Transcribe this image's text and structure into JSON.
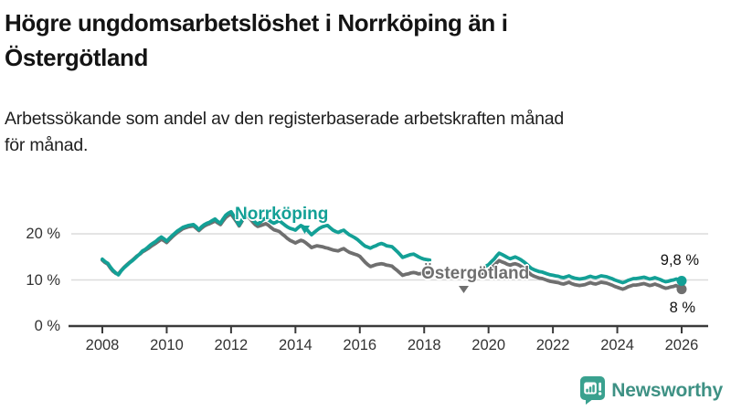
{
  "header": {
    "title_lines": [
      "Högre ungdomsarbetslöshet i Norrköping än i",
      "Östergötland"
    ],
    "subtitle_lines": [
      "Arbetssökande som andel av den registerbaserade arbetskraften månad",
      "för månad."
    ]
  },
  "chart_data": {
    "type": "line",
    "title": "Högre ungdomsarbetslöshet i Norrköping än i Östergötland",
    "subtitle": "Arbetssökande som andel av den registerbaserade arbetskraften månad för månad.",
    "xlabel": "",
    "ylabel": "",
    "grid": "horizontal",
    "legend_position": "inline-labels",
    "xlim": [
      2007.0,
      2026.8
    ],
    "ylim": [
      0,
      27
    ],
    "x_ticks": [
      2008,
      2010,
      2012,
      2014,
      2016,
      2018,
      2020,
      2022,
      2024,
      2026
    ],
    "y_ticks": [
      {
        "value": 0,
        "label": "0 %"
      },
      {
        "value": 10,
        "label": "10 %"
      },
      {
        "value": 20,
        "label": "20 %"
      }
    ],
    "series": [
      {
        "name": "Norrköping",
        "color": "#13a096",
        "end_label": "9,8 %",
        "end_value": 9.8
      },
      {
        "name": "Östergötland",
        "color": "#6f6f6f",
        "end_label": "8 %",
        "end_value": 8.0
      }
    ],
    "data_gap": {
      "from": 2018.17,
      "to": 2019.75
    },
    "segments": [
      {
        "points": [
          [
            2008.0,
            14.5,
            14.3
          ],
          [
            2008.08,
            14.0,
            13.8
          ],
          [
            2008.17,
            13.6,
            13.4
          ],
          [
            2008.25,
            12.8,
            12.6
          ],
          [
            2008.33,
            12.1,
            11.9
          ],
          [
            2008.42,
            11.5,
            11.4
          ],
          [
            2008.5,
            11.1,
            11.3
          ],
          [
            2008.58,
            11.9,
            12.0
          ],
          [
            2008.67,
            12.6,
            12.7
          ],
          [
            2008.75,
            13.1,
            13.2
          ],
          [
            2008.83,
            13.6,
            13.7
          ],
          [
            2008.92,
            14.1,
            14.2
          ],
          [
            2009.0,
            14.6,
            14.7
          ],
          [
            2009.08,
            15.1,
            15.2
          ],
          [
            2009.17,
            15.7,
            15.6
          ],
          [
            2009.25,
            16.3,
            16.1
          ],
          [
            2009.33,
            16.6,
            16.4
          ],
          [
            2009.42,
            17.1,
            16.8
          ],
          [
            2009.5,
            17.6,
            17.2
          ],
          [
            2009.58,
            18.0,
            17.6
          ],
          [
            2009.67,
            18.4,
            18.0
          ],
          [
            2009.75,
            18.9,
            18.4
          ],
          [
            2009.83,
            19.3,
            18.8
          ],
          [
            2009.92,
            18.9,
            18.5
          ],
          [
            2010.0,
            18.4,
            18.1
          ],
          [
            2010.08,
            19.0,
            18.7
          ],
          [
            2010.17,
            19.6,
            19.3
          ],
          [
            2010.25,
            20.1,
            19.8
          ],
          [
            2010.33,
            20.6,
            20.3
          ],
          [
            2010.42,
            21.0,
            20.7
          ],
          [
            2010.5,
            21.4,
            21.1
          ],
          [
            2010.58,
            21.6,
            21.3
          ],
          [
            2010.67,
            21.8,
            21.5
          ],
          [
            2010.75,
            21.9,
            21.6
          ],
          [
            2010.83,
            22.0,
            21.7
          ],
          [
            2010.92,
            21.5,
            21.2
          ],
          [
            2011.0,
            20.9,
            20.7
          ],
          [
            2011.08,
            21.5,
            21.2
          ],
          [
            2011.17,
            22.0,
            21.7
          ],
          [
            2011.25,
            22.3,
            22.0
          ],
          [
            2011.33,
            22.5,
            22.2
          ],
          [
            2011.42,
            22.9,
            22.5
          ],
          [
            2011.5,
            23.2,
            22.8
          ],
          [
            2011.58,
            22.7,
            22.4
          ],
          [
            2011.67,
            22.3,
            22.0
          ],
          [
            2011.75,
            23.2,
            22.8
          ],
          [
            2011.83,
            24.0,
            23.5
          ],
          [
            2011.92,
            24.5,
            24.0
          ],
          [
            2012.0,
            24.8,
            24.3
          ],
          [
            2012.08,
            23.9,
            23.5
          ],
          [
            2012.17,
            22.9,
            22.6
          ],
          [
            2012.25,
            21.9,
            21.7
          ],
          [
            2012.33,
            22.9,
            22.6
          ],
          [
            2012.42,
            24.0,
            23.8
          ],
          [
            2012.5,
            24.4,
            24.1
          ],
          [
            2012.58,
            23.7,
            23.3
          ],
          [
            2012.67,
            23.1,
            22.6
          ],
          [
            2012.75,
            22.5,
            22.0
          ],
          [
            2012.83,
            22.1,
            21.6
          ],
          [
            2012.92,
            22.6,
            21.8
          ],
          [
            2013.0,
            23.1,
            22.0
          ],
          [
            2013.08,
            23.4,
            22.2
          ],
          [
            2013.17,
            23.0,
            21.8
          ],
          [
            2013.25,
            22.6,
            21.3
          ],
          [
            2013.33,
            22.3,
            20.9
          ],
          [
            2013.42,
            22.6,
            20.7
          ],
          [
            2013.5,
            22.9,
            20.5
          ],
          [
            2013.58,
            22.4,
            20.0
          ],
          [
            2013.67,
            21.9,
            19.5
          ],
          [
            2013.75,
            21.5,
            19.0
          ],
          [
            2013.83,
            21.2,
            18.6
          ],
          [
            2013.92,
            21.0,
            18.3
          ],
          [
            2014.0,
            20.8,
            18.0
          ],
          [
            2014.08,
            21.3,
            18.3
          ],
          [
            2014.17,
            21.8,
            18.6
          ],
          [
            2014.25,
            21.5,
            18.4
          ],
          [
            2014.33,
            21.1,
            18.0
          ],
          [
            2014.42,
            20.4,
            17.5
          ],
          [
            2014.5,
            19.8,
            17.0
          ],
          [
            2014.58,
            20.3,
            17.2
          ],
          [
            2014.67,
            20.8,
            17.4
          ],
          [
            2014.75,
            21.2,
            17.3
          ],
          [
            2014.83,
            21.5,
            17.2
          ],
          [
            2014.92,
            21.7,
            17.0
          ],
          [
            2015.0,
            21.8,
            16.9
          ],
          [
            2015.08,
            21.3,
            16.7
          ],
          [
            2015.17,
            20.8,
            16.5
          ],
          [
            2015.25,
            20.5,
            16.4
          ],
          [
            2015.33,
            20.3,
            16.3
          ],
          [
            2015.42,
            20.6,
            16.6
          ],
          [
            2015.5,
            20.8,
            16.8
          ],
          [
            2015.58,
            20.3,
            16.4
          ],
          [
            2015.67,
            19.8,
            16.0
          ],
          [
            2015.75,
            19.5,
            15.8
          ],
          [
            2015.83,
            19.2,
            15.6
          ],
          [
            2015.92,
            18.8,
            15.4
          ],
          [
            2016.0,
            18.3,
            15.1
          ],
          [
            2016.08,
            17.8,
            14.5
          ],
          [
            2016.17,
            17.3,
            13.8
          ],
          [
            2016.25,
            17.1,
            13.3
          ],
          [
            2016.33,
            16.9,
            12.9
          ],
          [
            2016.42,
            17.2,
            13.1
          ],
          [
            2016.5,
            17.4,
            13.3
          ],
          [
            2016.58,
            17.7,
            13.4
          ],
          [
            2016.67,
            17.9,
            13.5
          ],
          [
            2016.75,
            17.7,
            13.4
          ],
          [
            2016.83,
            17.4,
            13.2
          ],
          [
            2016.92,
            17.3,
            13.1
          ],
          [
            2017.0,
            17.2,
            13.0
          ],
          [
            2017.08,
            16.7,
            12.5
          ],
          [
            2017.17,
            16.1,
            12.0
          ],
          [
            2017.25,
            15.5,
            11.5
          ],
          [
            2017.33,
            14.9,
            11.0
          ],
          [
            2017.42,
            15.1,
            11.2
          ],
          [
            2017.5,
            15.3,
            11.3
          ],
          [
            2017.58,
            15.5,
            11.5
          ],
          [
            2017.67,
            15.6,
            11.6
          ],
          [
            2017.75,
            15.3,
            11.5
          ],
          [
            2017.83,
            15.0,
            11.3
          ],
          [
            2017.92,
            14.7,
            11.4
          ],
          [
            2018.0,
            14.5,
            11.5
          ],
          [
            2018.08,
            14.4,
            11.5
          ],
          [
            2018.17,
            14.3,
            11.6
          ]
        ]
      },
      {
        "points": [
          [
            2019.75,
            12.2,
            11.0
          ],
          [
            2019.83,
            12.7,
            11.4
          ],
          [
            2019.92,
            13.0,
            11.7
          ],
          [
            2020.0,
            13.3,
            11.9
          ],
          [
            2020.08,
            13.9,
            12.5
          ],
          [
            2020.17,
            14.5,
            13.1
          ],
          [
            2020.25,
            15.2,
            13.7
          ],
          [
            2020.33,
            15.8,
            14.2
          ],
          [
            2020.42,
            15.5,
            13.9
          ],
          [
            2020.5,
            15.2,
            13.7
          ],
          [
            2020.58,
            14.9,
            13.4
          ],
          [
            2020.67,
            14.6,
            13.2
          ],
          [
            2020.75,
            14.8,
            13.4
          ],
          [
            2020.83,
            15.0,
            13.5
          ],
          [
            2020.92,
            14.7,
            13.3
          ],
          [
            2021.0,
            14.4,
            13.0
          ],
          [
            2021.08,
            14.0,
            12.6
          ],
          [
            2021.17,
            13.5,
            12.1
          ],
          [
            2021.25,
            13.0,
            11.6
          ],
          [
            2021.33,
            12.5,
            11.1
          ],
          [
            2021.42,
            12.2,
            10.8
          ],
          [
            2021.5,
            12.0,
            10.6
          ],
          [
            2021.58,
            11.8,
            10.4
          ],
          [
            2021.67,
            11.7,
            10.3
          ],
          [
            2021.75,
            11.5,
            10.1
          ],
          [
            2021.83,
            11.3,
            9.9
          ],
          [
            2021.92,
            11.1,
            9.7
          ],
          [
            2022.0,
            11.0,
            9.6
          ],
          [
            2022.08,
            10.9,
            9.5
          ],
          [
            2022.17,
            10.8,
            9.4
          ],
          [
            2022.25,
            10.6,
            9.2
          ],
          [
            2022.33,
            10.5,
            9.1
          ],
          [
            2022.42,
            10.7,
            9.3
          ],
          [
            2022.5,
            10.9,
            9.5
          ],
          [
            2022.58,
            10.6,
            9.2
          ],
          [
            2022.67,
            10.4,
            9.0
          ],
          [
            2022.75,
            10.3,
            8.9
          ],
          [
            2022.83,
            10.2,
            8.8
          ],
          [
            2022.92,
            10.3,
            8.9
          ],
          [
            2023.0,
            10.4,
            9.0
          ],
          [
            2023.08,
            10.6,
            9.2
          ],
          [
            2023.17,
            10.8,
            9.4
          ],
          [
            2023.25,
            10.6,
            9.2
          ],
          [
            2023.33,
            10.5,
            9.1
          ],
          [
            2023.42,
            10.7,
            9.3
          ],
          [
            2023.5,
            10.9,
            9.5
          ],
          [
            2023.58,
            10.8,
            9.4
          ],
          [
            2023.67,
            10.7,
            9.3
          ],
          [
            2023.75,
            10.5,
            9.1
          ],
          [
            2023.83,
            10.3,
            8.9
          ],
          [
            2023.92,
            10.0,
            8.6
          ],
          [
            2024.0,
            9.8,
            8.4
          ],
          [
            2024.08,
            9.6,
            8.2
          ],
          [
            2024.17,
            9.4,
            8.0
          ],
          [
            2024.25,
            9.6,
            8.2
          ],
          [
            2024.33,
            9.9,
            8.5
          ],
          [
            2024.42,
            10.1,
            8.7
          ],
          [
            2024.5,
            10.3,
            8.9
          ],
          [
            2024.58,
            10.3,
            8.9
          ],
          [
            2024.67,
            10.4,
            9.0
          ],
          [
            2024.75,
            10.5,
            9.1
          ],
          [
            2024.83,
            10.6,
            9.2
          ],
          [
            2024.92,
            10.4,
            9.0
          ],
          [
            2025.0,
            10.2,
            8.8
          ],
          [
            2025.08,
            10.3,
            8.9
          ],
          [
            2025.17,
            10.5,
            9.1
          ],
          [
            2025.25,
            10.3,
            8.9
          ],
          [
            2025.33,
            10.1,
            8.7
          ],
          [
            2025.42,
            9.8,
            8.4
          ],
          [
            2025.5,
            9.6,
            8.2
          ],
          [
            2025.58,
            9.7,
            8.3
          ],
          [
            2025.67,
            9.9,
            8.5
          ],
          [
            2025.75,
            10.0,
            8.6
          ],
          [
            2025.83,
            10.2,
            8.8
          ],
          [
            2025.92,
            10.0,
            8.4
          ],
          [
            2026.0,
            9.8,
            8.0
          ]
        ]
      }
    ]
  },
  "colors": {
    "accent_teal": "#13a096",
    "series_gray": "#6f6f6f",
    "gridline": "#dcdcdc",
    "axis": "#3a3a3a",
    "axis_label": "#333333",
    "logo_teal": "#3aa18f",
    "logo_text": "#3e9184"
  },
  "footer": {
    "brand": "Newsworthy"
  }
}
